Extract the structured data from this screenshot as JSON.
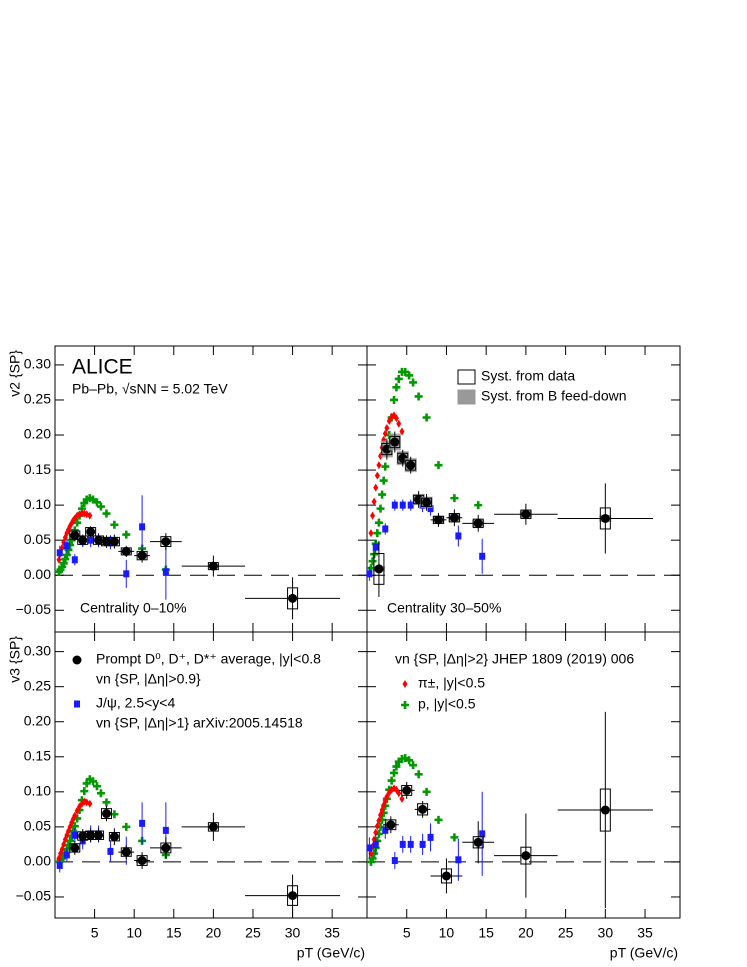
{
  "chart_data": [
    {
      "type": "scatter",
      "ylabel": "v2 {SP}",
      "tick_labels": [
        "y"
      ],
      "zero_line": true,
      "xlim": [
        0,
        39.4
      ],
      "ylim": [
        -0.081,
        0.327
      ],
      "xticks": [
        5,
        10,
        15,
        20,
        25,
        30,
        35
      ],
      "yticks": [
        {
          "value": -0.05,
          "label": "−0.05"
        },
        {
          "value": 0,
          "label": "0.00"
        },
        {
          "value": 0.05,
          "label": "0.05"
        },
        {
          "value": 0.1,
          "label": "0.10"
        },
        {
          "value": 0.15,
          "label": "0.15"
        },
        {
          "value": 0.2,
          "label": "0.20"
        },
        {
          "value": 0.25,
          "label": "0.25"
        },
        {
          "value": 0.3,
          "label": "0.30"
        }
      ],
      "annotations": [
        "ALICE",
        "Pb–Pb, √sNN = 5.02 TeV",
        "Centrality 0–10%"
      ],
      "series": [
        {
          "marker": "circle",
          "color": "#000000",
          "x": [
            2.5,
            3.5,
            4.5,
            5.5,
            6.5,
            7.5,
            9,
            11,
            14,
            20,
            30
          ],
          "xerr": [
            0.5,
            0.5,
            0.5,
            0.5,
            0.5,
            0.5,
            1,
            1,
            2,
            4,
            6
          ],
          "values": [
            0.057,
            0.05,
            0.062,
            0.05,
            0.048,
            0.048,
            0.034,
            0.028,
            0.048,
            0.013,
            -0.033
          ],
          "yerr": [
            0.008,
            0.008,
            0.008,
            0.008,
            0.009,
            0.01,
            0.008,
            0.01,
            0.012,
            0.015,
            0.03
          ],
          "syst": [
            0.006,
            0.006,
            0.006,
            0.006,
            0.006,
            0.006,
            0.005,
            0.006,
            0.007,
            0.005,
            0.015
          ]
        },
        {
          "marker": "square",
          "color": "#1a1aff",
          "x": [
            0.6,
            1.5,
            2.5,
            3.5,
            4.5,
            5.5,
            7,
            9,
            11,
            14
          ],
          "values": [
            0.032,
            0.042,
            0.022,
            0.048,
            0.05,
            0.05,
            0.047,
            0.002,
            0.069,
            0.005
          ],
          "yerr": [
            0.01,
            0.01,
            0.008,
            0.008,
            0.01,
            0.01,
            0.01,
            0.02,
            0.045,
            0.04
          ]
        },
        {
          "marker": "diamond",
          "color": "#ff0000",
          "x": [
            0.5,
            0.7,
            0.9,
            1.1,
            1.3,
            1.5,
            1.7,
            1.9,
            2.1,
            2.3,
            2.5,
            2.8,
            3.1,
            3.4,
            3.7,
            4.0,
            4.4
          ],
          "values": [
            0.022,
            0.031,
            0.039,
            0.047,
            0.054,
            0.06,
            0.065,
            0.07,
            0.074,
            0.078,
            0.081,
            0.085,
            0.087,
            0.088,
            0.088,
            0.087,
            0.085
          ]
        },
        {
          "marker": "cross",
          "color": "#009900",
          "x": [
            0.5,
            0.7,
            0.9,
            1.1,
            1.3,
            1.5,
            1.7,
            1.9,
            2.1,
            2.3,
            2.5,
            2.8,
            3.1,
            3.4,
            3.7,
            4.0,
            4.4,
            4.8,
            5.3,
            5.8,
            6.5,
            7.5,
            9,
            11,
            14
          ],
          "values": [
            0.005,
            0.008,
            0.012,
            0.017,
            0.023,
            0.029,
            0.036,
            0.043,
            0.05,
            0.057,
            0.064,
            0.075,
            0.085,
            0.095,
            0.103,
            0.108,
            0.11,
            0.108,
            0.104,
            0.098,
            0.088,
            0.072,
            0.058,
            0.038,
            0.008
          ]
        }
      ]
    },
    {
      "type": "scatter",
      "tick_labels": [],
      "zero_line": true,
      "xlim": [
        0,
        39.4
      ],
      "ylim": [
        -0.081,
        0.327
      ],
      "xticks": [
        5,
        10,
        15,
        20,
        25,
        30,
        35
      ],
      "yticks": [
        -0.05,
        0,
        0.05,
        0.1,
        0.15,
        0.2,
        0.25,
        0.3
      ],
      "annotations": [
        "Centrality 30–50%"
      ],
      "legend_boxes": [
        {
          "text": "Syst. from data",
          "fill": "none"
        },
        {
          "text": "Syst. from B feed-down",
          "fill": "#999999"
        }
      ],
      "series": [
        {
          "marker": "circle",
          "color": "#000000",
          "x": [
            1.5,
            2.5,
            3.5,
            4.5,
            5.5,
            6.5,
            7.5,
            9,
            11,
            14,
            20,
            30
          ],
          "xerr": [
            0.5,
            0.5,
            0.5,
            0.5,
            0.5,
            0.5,
            0.5,
            1,
            1,
            2,
            4,
            6
          ],
          "values": [
            0.009,
            0.18,
            0.19,
            0.167,
            0.157,
            0.108,
            0.104,
            0.079,
            0.082,
            0.074,
            0.087,
            0.081
          ],
          "yerr": [
            0.04,
            0.015,
            0.015,
            0.012,
            0.012,
            0.012,
            0.012,
            0.01,
            0.012,
            0.012,
            0.015,
            0.05
          ],
          "syst": [
            0.022,
            0.008,
            0.008,
            0.007,
            0.007,
            0.006,
            0.006,
            0.005,
            0.006,
            0.006,
            0.006,
            0.015
          ],
          "syst_b": [
            0.004,
            0.012,
            0.012,
            0.01,
            0.01,
            0.008,
            0.008,
            0.006,
            0.006,
            0.005,
            0.005,
            0.005
          ]
        },
        {
          "marker": "square",
          "color": "#1a1aff",
          "x": [
            0.3,
            1.1,
            2.3,
            3.5,
            4.5,
            5.5,
            7,
            8,
            11.5,
            14.5
          ],
          "values": [
            0.002,
            0.04,
            0.066,
            0.1,
            0.1,
            0.1,
            0.1,
            0.095,
            0.056,
            0.027
          ],
          "yerr": [
            0.01,
            0.01,
            0.008,
            0.008,
            0.008,
            0.008,
            0.01,
            0.01,
            0.015,
            0.025
          ]
        },
        {
          "marker": "diamond",
          "color": "#ff0000",
          "x": [
            0.5,
            0.7,
            0.9,
            1.1,
            1.3,
            1.5,
            1.7,
            1.9,
            2.1,
            2.3,
            2.5,
            2.8,
            3.1,
            3.4,
            3.7,
            4.0,
            4.4
          ],
          "values": [
            0.06,
            0.085,
            0.105,
            0.125,
            0.142,
            0.157,
            0.17,
            0.182,
            0.193,
            0.202,
            0.21,
            0.22,
            0.226,
            0.228,
            0.224,
            0.216,
            0.205
          ]
        },
        {
          "marker": "cross",
          "color": "#009900",
          "x": [
            0.5,
            0.7,
            0.9,
            1.1,
            1.3,
            1.5,
            1.7,
            1.9,
            2.1,
            2.3,
            2.5,
            2.8,
            3.1,
            3.4,
            3.7,
            4.0,
            4.4,
            4.8,
            5.3,
            5.8,
            6.5,
            7.5,
            9,
            11,
            14
          ],
          "values": [
            0.01,
            0.02,
            0.03,
            0.045,
            0.06,
            0.075,
            0.095,
            0.115,
            0.135,
            0.155,
            0.175,
            0.2,
            0.225,
            0.25,
            0.268,
            0.28,
            0.29,
            0.29,
            0.285,
            0.275,
            0.255,
            0.225,
            0.157,
            0.11,
            0.1
          ]
        }
      ]
    },
    {
      "type": "scatter",
      "ylabel": "v3 {SP}",
      "xlabel": "pT (GeV/c)",
      "tick_labels": [
        "x",
        "y"
      ],
      "zero_line": true,
      "xlim": [
        0,
        39.4
      ],
      "ylim": [
        -0.08,
        0.328
      ],
      "xticks": [
        5,
        10,
        15,
        20,
        25,
        30,
        35
      ],
      "yticks": [
        {
          "value": -0.05,
          "label": "−0.05"
        },
        {
          "value": 0,
          "label": "0.00"
        },
        {
          "value": 0.05,
          "label": "0.05"
        },
        {
          "value": 0.1,
          "label": "0.10"
        },
        {
          "value": 0.15,
          "label": "0.15"
        },
        {
          "value": 0.2,
          "label": "0.20"
        },
        {
          "value": 0.25,
          "label": "0.25"
        },
        {
          "value": 0.3,
          "label": "0.30"
        }
      ],
      "series": [
        {
          "name": "Prompt D⁰, D⁺, D*⁺ average, |y|<0.8",
          "legend_note": "vn {SP, |Δη|>0.9}",
          "marker": "circle",
          "color": "#000000",
          "x": [
            2.5,
            3.5,
            4.5,
            5.5,
            6.5,
            7.5,
            9,
            11,
            14,
            20,
            30
          ],
          "xerr": [
            0.5,
            0.5,
            0.5,
            0.5,
            0.5,
            0.5,
            1,
            1,
            2,
            4,
            6
          ],
          "values": [
            0.02,
            0.037,
            0.038,
            0.038,
            0.069,
            0.036,
            0.014,
            0.002,
            0.02,
            0.05,
            -0.048
          ],
          "yerr": [
            0.01,
            0.01,
            0.01,
            0.01,
            0.011,
            0.012,
            0.01,
            0.012,
            0.015,
            0.02,
            0.03
          ],
          "syst": [
            0.006,
            0.006,
            0.006,
            0.006,
            0.007,
            0.006,
            0.006,
            0.007,
            0.007,
            0.006,
            0.014
          ]
        },
        {
          "name": "J/ψ, 2.5<y<4",
          "legend_note": "vn {SP, |Δη|>1} arXiv:2005.14518",
          "marker": "square",
          "color": "#1a1aff",
          "x": [
            0.6,
            1.5,
            2.5,
            3.5,
            4.5,
            5.5,
            7,
            9,
            11,
            14
          ],
          "values": [
            -0.005,
            0.01,
            0.038,
            0.03,
            0.04,
            0.04,
            0.015,
            0.016,
            0.055,
            0.045
          ],
          "yerr": [
            0.01,
            0.01,
            0.01,
            0.012,
            0.012,
            0.012,
            0.015,
            0.02,
            0.03,
            0.04
          ]
        },
        {
          "marker": "diamond",
          "color": "#ff0000",
          "x": [
            0.5,
            0.7,
            0.9,
            1.1,
            1.3,
            1.5,
            1.7,
            1.9,
            2.1,
            2.3,
            2.5,
            2.8,
            3.1,
            3.4,
            3.7,
            4.0,
            4.4
          ],
          "values": [
            0.005,
            0.012,
            0.018,
            0.025,
            0.032,
            0.038,
            0.044,
            0.05,
            0.056,
            0.061,
            0.066,
            0.073,
            0.079,
            0.083,
            0.086,
            0.085,
            0.083
          ]
        },
        {
          "marker": "cross",
          "color": "#009900",
          "x": [
            0.5,
            0.7,
            0.9,
            1.1,
            1.3,
            1.5,
            1.7,
            1.9,
            2.1,
            2.3,
            2.5,
            2.8,
            3.1,
            3.4,
            3.7,
            4.0,
            4.4,
            4.8,
            5.3,
            5.8,
            6.5,
            7.5,
            9,
            11,
            14
          ],
          "values": [
            0.0,
            0.002,
            0.005,
            0.009,
            0.013,
            0.018,
            0.024,
            0.03,
            0.037,
            0.044,
            0.051,
            0.062,
            0.074,
            0.088,
            0.101,
            0.112,
            0.118,
            0.115,
            0.108,
            0.098,
            0.085,
            0.068,
            0.05,
            0.03,
            0.01
          ]
        }
      ]
    },
    {
      "type": "scatter",
      "xlabel": "pT (GeV/c)",
      "tick_labels": [
        "x"
      ],
      "zero_line": true,
      "xlim": [
        0,
        39.4
      ],
      "ylim": [
        -0.08,
        0.328
      ],
      "xticks": [
        5,
        10,
        15,
        20,
        25,
        30,
        35
      ],
      "yticks": [
        -0.05,
        0,
        0.05,
        0.1,
        0.15,
        0.2,
        0.25,
        0.3
      ],
      "legend_title": "vn {SP, |Δη|>2} JHEP 1809 (2019) 006",
      "series": [
        {
          "marker": "circle",
          "color": "#000000",
          "x": [
            3,
            5,
            7,
            10,
            14,
            20,
            30
          ],
          "xerr": [
            1,
            1,
            1,
            2,
            2,
            4,
            6
          ],
          "values": [
            0.053,
            0.102,
            0.075,
            -0.02,
            0.028,
            0.009,
            0.074
          ],
          "yerr": [
            0.012,
            0.012,
            0.012,
            0.025,
            0.03,
            0.06,
            0.14
          ],
          "syst": [
            0.007,
            0.007,
            0.008,
            0.01,
            0.008,
            0.012,
            0.03
          ]
        },
        {
          "marker": "square",
          "color": "#1a1aff",
          "x": [
            0.3,
            1.1,
            2.3,
            3.5,
            4.5,
            5.5,
            7,
            8,
            11.5,
            14.5
          ],
          "values": [
            0.02,
            0.025,
            0.045,
            0.002,
            0.025,
            0.025,
            0.025,
            0.035,
            0.003,
            0.04
          ],
          "yerr": [
            0.015,
            0.015,
            0.012,
            0.012,
            0.012,
            0.012,
            0.015,
            0.02,
            0.03,
            0.06
          ]
        },
        {
          "name": "π±, |y|<0.5",
          "marker": "diamond",
          "color": "#ff0000",
          "x": [
            0.5,
            0.7,
            0.9,
            1.1,
            1.3,
            1.5,
            1.7,
            1.9,
            2.1,
            2.3,
            2.5,
            2.8,
            3.1,
            3.4,
            3.7,
            4.0,
            4.4
          ],
          "values": [
            0.012,
            0.022,
            0.032,
            0.042,
            0.051,
            0.059,
            0.067,
            0.074,
            0.081,
            0.087,
            0.093,
            0.099,
            0.103,
            0.105,
            0.103,
            0.098,
            0.09
          ]
        },
        {
          "name": "p, |y|<0.5",
          "marker": "cross",
          "color": "#009900",
          "x": [
            0.5,
            0.7,
            0.9,
            1.1,
            1.3,
            1.5,
            1.7,
            1.9,
            2.1,
            2.3,
            2.5,
            2.8,
            3.1,
            3.4,
            3.7,
            4.0,
            4.4,
            4.8,
            5.3,
            5.8,
            6.5,
            7.5,
            9,
            11,
            14
          ],
          "values": [
            0.0,
            0.005,
            0.012,
            0.02,
            0.03,
            0.04,
            0.05,
            0.06,
            0.07,
            0.08,
            0.09,
            0.103,
            0.116,
            0.127,
            0.136,
            0.143,
            0.147,
            0.148,
            0.145,
            0.138,
            0.125,
            0.1,
            0.06,
            0.035,
            0.025
          ]
        }
      ]
    }
  ]
}
